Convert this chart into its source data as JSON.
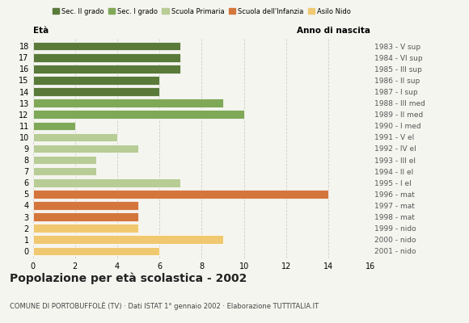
{
  "ages": [
    18,
    17,
    16,
    15,
    14,
    13,
    12,
    11,
    10,
    9,
    8,
    7,
    6,
    5,
    4,
    3,
    2,
    1,
    0
  ],
  "values": [
    7,
    7,
    7,
    6,
    6,
    9,
    10,
    2,
    4,
    5,
    3,
    3,
    7,
    14,
    5,
    5,
    5,
    9,
    6
  ],
  "categories": [
    "Sec. II grado",
    "Sec. II grado",
    "Sec. II grado",
    "Sec. II grado",
    "Sec. II grado",
    "Sec. I grado",
    "Sec. I grado",
    "Sec. I grado",
    "Scuola Primaria",
    "Scuola Primaria",
    "Scuola Primaria",
    "Scuola Primaria",
    "Scuola Primaria",
    "Scuola dell'Infanzia",
    "Scuola dell'Infanzia",
    "Scuola dell'Infanzia",
    "Asilo Nido",
    "Asilo Nido",
    "Asilo Nido"
  ],
  "right_labels": [
    "1983 - V sup",
    "1984 - VI sup",
    "1985 - III sup",
    "1986 - II sup",
    "1987 - I sup",
    "1988 - III med",
    "1989 - II med",
    "1990 - I med",
    "1991 - V el",
    "1992 - IV el",
    "1993 - III el",
    "1994 - II el",
    "1995 - I el",
    "1996 - mat",
    "1997 - mat",
    "1998 - mat",
    "1999 - nido",
    "2000 - nido",
    "2001 - nido"
  ],
  "colors": {
    "Sec. II grado": "#5a7a3a",
    "Sec. I grado": "#7fa857",
    "Scuola Primaria": "#b8cc96",
    "Scuola dell'Infanzia": "#d4763c",
    "Asilo Nido": "#f0c870"
  },
  "legend_order": [
    "Sec. II grado",
    "Sec. I grado",
    "Scuola Primaria",
    "Scuola dell'Infanzia",
    "Asilo Nido"
  ],
  "xlabel_left": "Età",
  "xlabel_right": "Anno di nascita",
  "xlim": [
    0,
    16
  ],
  "xticks": [
    0,
    2,
    4,
    6,
    8,
    10,
    12,
    14,
    16
  ],
  "title": "Popolazione per età scolastica - 2002",
  "subtitle": "COMUNE DI PORTOBUFFOLÈ (TV) · Dati ISTAT 1° gennaio 2002 · Elaborazione TUTTITALIA.IT",
  "background_color": "#f5f5f0",
  "bar_height": 0.75,
  "grid_color": "#cccccc"
}
